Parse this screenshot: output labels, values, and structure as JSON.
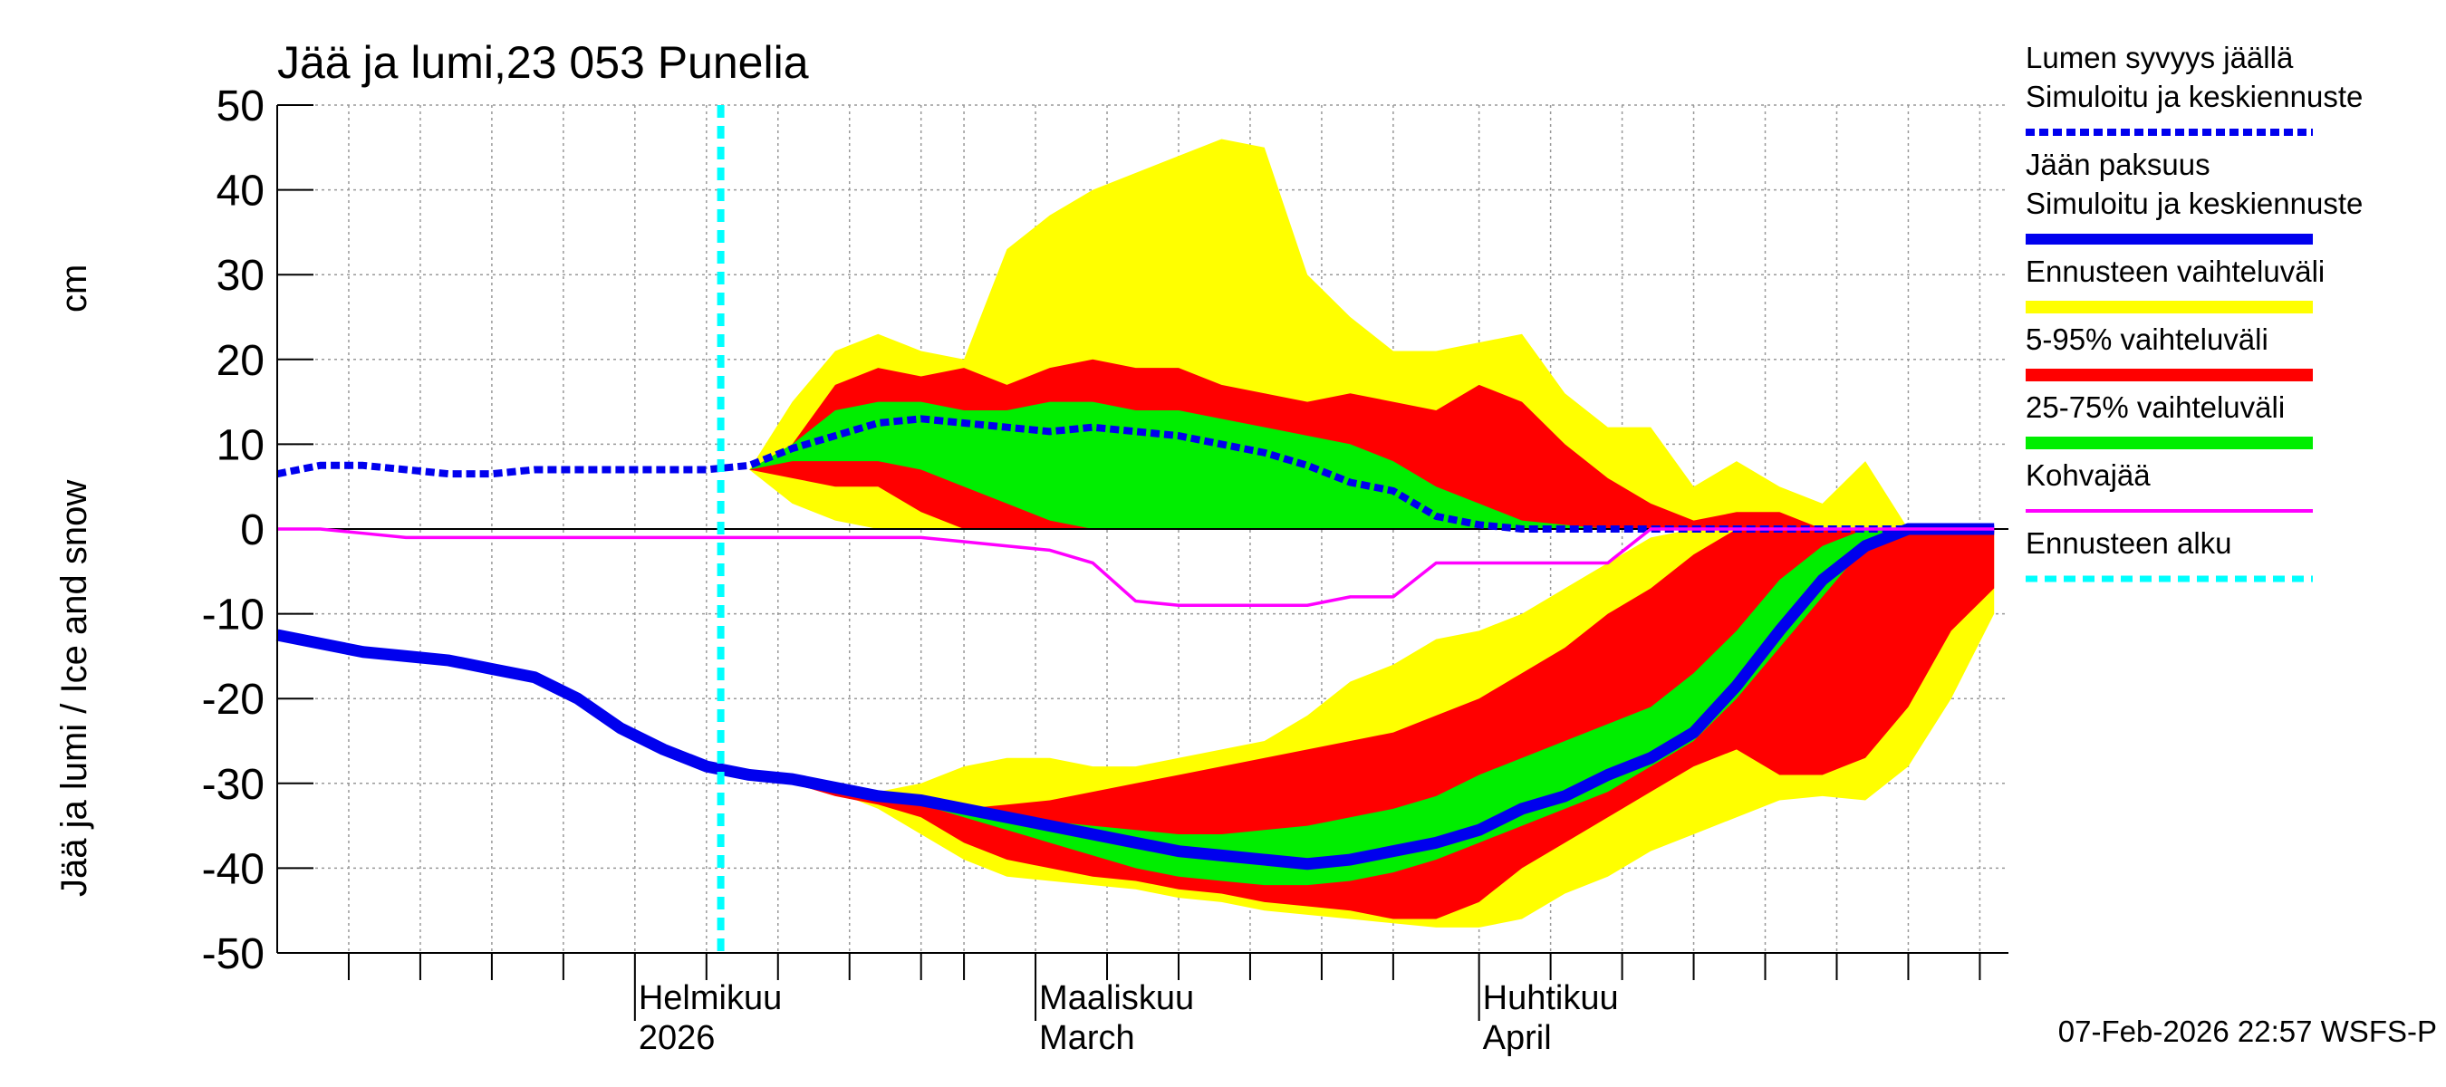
{
  "chart_data": {
    "type": "band-line",
    "title": "Jää ja lumi,23 053 Punelia",
    "ylabel": "Jää ja lumi / Ice and snow",
    "yunit": "cm",
    "footer": "07-Feb-2026 22:57 WSFS-P",
    "xlim": [
      7,
      128
    ],
    "xticks": [
      {
        "value": 32,
        "label": [
          "Helmikuu",
          "2026"
        ]
      },
      {
        "value": 60,
        "label": [
          "Maaliskuu",
          "March"
        ]
      },
      {
        "value": 91,
        "label": [
          "Huhtikuu",
          "April"
        ]
      }
    ],
    "xgrid": [
      12,
      17,
      22,
      27,
      37,
      42,
      47,
      52,
      55,
      65,
      70,
      75,
      80,
      85,
      96,
      101,
      106,
      111,
      116,
      121,
      126
    ],
    "ylim": [
      -50,
      50
    ],
    "yticks": [
      -50,
      -40,
      -30,
      -20,
      -10,
      0,
      10,
      20,
      30,
      40,
      50
    ],
    "grid": true,
    "x": [
      7,
      10,
      13,
      16,
      19,
      22,
      25,
      28,
      31,
      34,
      37,
      40,
      43,
      46,
      49,
      52,
      55,
      58,
      61,
      64,
      67,
      70,
      73,
      76,
      79,
      82,
      85,
      88,
      91,
      94,
      97,
      100,
      103,
      106,
      109,
      112,
      115,
      118,
      121,
      124,
      127
    ],
    "series": [
      {
        "name": [
          "Lumen syvyys jäällä",
          "Simuloitu ja keskiennuste"
        ],
        "kind": "line",
        "style": "dashed",
        "color": "#0000ee",
        "values": [
          6.5,
          7.5,
          7.5,
          7,
          6.5,
          6.5,
          7,
          7,
          7,
          7,
          7,
          7.5,
          9.5,
          11,
          12.5,
          13,
          12.5,
          12,
          11.5,
          12,
          11.5,
          11,
          10,
          9,
          7.5,
          5.5,
          4.5,
          1.5,
          0.5,
          0,
          0,
          0,
          0,
          0,
          0,
          0,
          0,
          0,
          0,
          0,
          0
        ]
      },
      {
        "name": [
          "Jään paksuus",
          "Simuloitu ja keskiennuste"
        ],
        "kind": "line",
        "style": "solid",
        "color": "#0000ee",
        "values": [
          -12.5,
          -13.5,
          -14.5,
          -15,
          -15.5,
          -16.5,
          -17.5,
          -20,
          -23.5,
          -26,
          -28,
          -29,
          -29.5,
          -30.5,
          -31.5,
          -32,
          -33,
          -34,
          -35,
          -36,
          -37,
          -38,
          -38.5,
          -39,
          -39.5,
          -39,
          -38,
          -37,
          -35.5,
          -33,
          -31.5,
          -29,
          -27,
          -24,
          -18.5,
          -12,
          -6,
          -2,
          0,
          0,
          0
        ]
      },
      {
        "name": [
          "Ennusteen vaihteluväli"
        ],
        "kind": "band",
        "color": "#ffff00",
        "parts": [
          {
            "upper": [
              null,
              null,
              null,
              null,
              null,
              null,
              null,
              null,
              null,
              null,
              null,
              7,
              15,
              21,
              23,
              21,
              20,
              33,
              37,
              40,
              42,
              44,
              46,
              45,
              30,
              25,
              21,
              21,
              22,
              23,
              16,
              12,
              12,
              5,
              8,
              5,
              3,
              8,
              0,
              0,
              0
            ],
            "lower": [
              null,
              null,
              null,
              null,
              null,
              null,
              null,
              null,
              null,
              null,
              null,
              7,
              3,
              1,
              0,
              0,
              0,
              0,
              0,
              0,
              0,
              0,
              0,
              0,
              0,
              0,
              0,
              0,
              0,
              0,
              0,
              0,
              0,
              0,
              0,
              0,
              0,
              0,
              0,
              0,
              0
            ]
          },
          {
            "upper": [
              null,
              null,
              null,
              null,
              null,
              null,
              null,
              null,
              null,
              null,
              null,
              -29,
              -29.5,
              -30.5,
              -31,
              -30,
              -28,
              -27,
              -27,
              -28,
              -28,
              -27,
              -26,
              -25,
              -22,
              -18,
              -16,
              -13,
              -12,
              -10,
              -7,
              -4,
              -1,
              0,
              0,
              0,
              0,
              0,
              0,
              0,
              0
            ],
            "lower": [
              null,
              null,
              null,
              null,
              null,
              null,
              null,
              null,
              null,
              null,
              null,
              -29,
              -30,
              -31,
              -33,
              -36,
              -39,
              -41,
              -41.5,
              -42,
              -42.5,
              -43.5,
              -44,
              -45,
              -45.5,
              -46,
              -46.5,
              -47,
              -47,
              -46,
              -43,
              -41,
              -38,
              -36,
              -34,
              -32,
              -31.5,
              -32,
              -28,
              -20,
              -10
            ]
          }
        ]
      },
      {
        "name": [
          "5-95% vaihteluväli"
        ],
        "kind": "band",
        "color": "#ff0000",
        "parts": [
          {
            "upper": [
              null,
              null,
              null,
              null,
              null,
              null,
              null,
              null,
              null,
              null,
              null,
              7,
              10,
              17,
              19,
              18,
              19,
              17,
              19,
              20,
              19,
              19,
              17,
              16,
              15,
              16,
              15,
              14,
              17,
              15,
              10,
              6,
              3,
              1,
              2,
              2,
              0,
              0,
              0,
              0,
              0
            ],
            "lower": [
              null,
              null,
              null,
              null,
              null,
              null,
              null,
              null,
              null,
              null,
              null,
              7,
              6,
              5,
              5,
              2,
              0,
              0,
              0,
              0,
              0,
              0,
              0,
              0,
              0,
              0,
              0,
              0,
              0,
              0,
              0,
              0,
              0,
              0,
              0,
              0,
              0,
              0,
              0,
              0,
              0
            ]
          },
          {
            "upper": [
              null,
              null,
              null,
              null,
              null,
              null,
              null,
              null,
              null,
              null,
              null,
              -29,
              -29.5,
              -30.5,
              -31.5,
              -32,
              -33,
              -32.5,
              -32,
              -31,
              -30,
              -29,
              -28,
              -27,
              -26,
              -25,
              -24,
              -22,
              -20,
              -17,
              -14,
              -10,
              -7,
              -3,
              0,
              0,
              0,
              0,
              0,
              0,
              0
            ],
            "lower": [
              null,
              null,
              null,
              null,
              null,
              null,
              null,
              null,
              null,
              null,
              null,
              -29,
              -30,
              -31.5,
              -32.5,
              -34,
              -37,
              -39,
              -40,
              -41,
              -41.5,
              -42.5,
              -43,
              -44,
              -44.5,
              -45,
              -46,
              -46,
              -44,
              -40,
              -37,
              -34,
              -31,
              -28,
              -26,
              -29,
              -29,
              -27,
              -21,
              -12,
              -7
            ]
          }
        ]
      },
      {
        "name": [
          "25-75% vaihteluväli"
        ],
        "kind": "band",
        "color": "#00ee00",
        "parts": [
          {
            "upper": [
              null,
              null,
              null,
              null,
              null,
              null,
              null,
              null,
              null,
              null,
              null,
              7,
              10,
              14,
              15,
              15,
              14,
              14,
              15,
              15,
              14,
              14,
              13,
              12,
              11,
              10,
              8,
              5,
              3,
              1,
              0.5,
              0,
              0,
              0,
              0,
              0,
              0,
              0,
              0,
              0,
              0
            ],
            "lower": [
              null,
              null,
              null,
              null,
              null,
              null,
              null,
              null,
              null,
              null,
              null,
              7,
              8,
              8,
              8,
              7,
              5,
              3,
              1,
              0,
              0,
              0,
              0,
              0,
              0,
              0,
              0,
              0,
              0,
              0,
              0,
              0,
              0,
              0,
              0,
              0,
              0,
              0,
              0,
              0,
              0
            ]
          },
          {
            "upper": [
              null,
              null,
              null,
              null,
              null,
              null,
              null,
              null,
              null,
              null,
              null,
              -29,
              -29.5,
              -30.5,
              -31.5,
              -32,
              -33,
              -34,
              -34.5,
              -35,
              -35.5,
              -36,
              -36,
              -35.5,
              -35,
              -34,
              -33,
              -31.5,
              -29,
              -27,
              -25,
              -23,
              -21,
              -17,
              -12,
              -6,
              -2,
              0,
              0,
              0,
              0
            ],
            "lower": [
              null,
              null,
              null,
              null,
              null,
              null,
              null,
              null,
              null,
              null,
              null,
              -29,
              -29.5,
              -30.5,
              -31.5,
              -32.5,
              -34,
              -35.5,
              -37,
              -38.5,
              -40,
              -41,
              -41.5,
              -42,
              -42,
              -41.5,
              -40.5,
              -39,
              -37,
              -35,
              -33,
              -31,
              -28,
              -25,
              -20,
              -14,
              -8,
              -2,
              0,
              0,
              0
            ]
          }
        ]
      },
      {
        "name": [
          "Kohvajää"
        ],
        "kind": "line",
        "style": "thin",
        "color": "#ff00ff",
        "values": [
          0,
          0,
          -0.5,
          -1,
          -1,
          -1,
          -1,
          -1,
          -1,
          -1,
          -1,
          -1,
          -1,
          -1,
          -1,
          -1,
          -1.5,
          -2,
          -2.5,
          -4,
          -8.5,
          -9,
          -9,
          -9,
          -9,
          -8,
          -8,
          -4,
          -4,
          -4,
          -4,
          -4,
          0,
          0,
          0,
          0,
          0,
          0,
          0,
          0,
          0
        ]
      },
      {
        "name": [
          "Ennusteen alku"
        ],
        "kind": "vline",
        "style": "dashed",
        "color": "#00ffff",
        "x": 38
      }
    ]
  }
}
